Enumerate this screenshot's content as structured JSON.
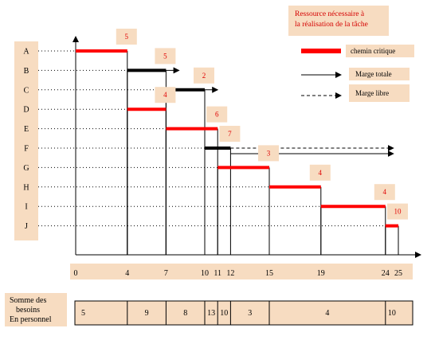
{
  "legend": {
    "title_line1": "Ressource nécessaire à",
    "title_line2": "la réalisation de la tâche",
    "critical_path": "chemin critique",
    "total_margin": "Marge totale",
    "free_margin": "Marge libre",
    "critical_color": "#ff0000"
  },
  "chart_data": {
    "type": "gantt",
    "x_ticks": [
      0,
      4,
      7,
      10,
      11,
      12,
      15,
      19,
      24,
      25
    ],
    "tasks": [
      {
        "name": "A",
        "start": 0,
        "end": 4,
        "resource": "5",
        "critical": true
      },
      {
        "name": "B",
        "start": 4,
        "end": 7,
        "resource": "5",
        "critical": false,
        "total_margin_to": 8
      },
      {
        "name": "C",
        "start": 7,
        "end": 10,
        "resource": "2",
        "critical": false,
        "total_margin_to": 11
      },
      {
        "name": "D",
        "start": 4,
        "end": 7,
        "resource": "4",
        "critical": true
      },
      {
        "name": "E",
        "start": 7,
        "end": 11,
        "resource": "6",
        "critical": true
      },
      {
        "name": "F",
        "start": 10,
        "end": 12,
        "resource": "7",
        "critical": false,
        "free_margin_to": 24,
        "total_margin_to": 24
      },
      {
        "name": "G",
        "start": 11,
        "end": 15,
        "resource": "3",
        "critical": true
      },
      {
        "name": "H",
        "start": 15,
        "end": 19,
        "resource": "4",
        "critical": true
      },
      {
        "name": "I",
        "start": 19,
        "end": 24,
        "resource": "4",
        "critical": true
      },
      {
        "name": "J",
        "start": 24,
        "end": 25,
        "resource": "10",
        "critical": true
      }
    ]
  },
  "summary": {
    "label_line1": "Somme des",
    "label_line2": "besoins",
    "label_line3": "En personnel",
    "segments": [
      {
        "from": 0,
        "to": 4,
        "value": "5"
      },
      {
        "from": 4,
        "to": 7,
        "value": "9"
      },
      {
        "from": 7,
        "to": 10,
        "value": "8"
      },
      {
        "from": 10,
        "to": 11,
        "value": "13"
      },
      {
        "from": 11,
        "to": 12,
        "value": "10"
      },
      {
        "from": 12,
        "to": 15,
        "value": "3"
      },
      {
        "from": 15,
        "to": 24,
        "value": "4"
      },
      {
        "from": 24,
        "to": 25,
        "value": "10"
      }
    ]
  }
}
